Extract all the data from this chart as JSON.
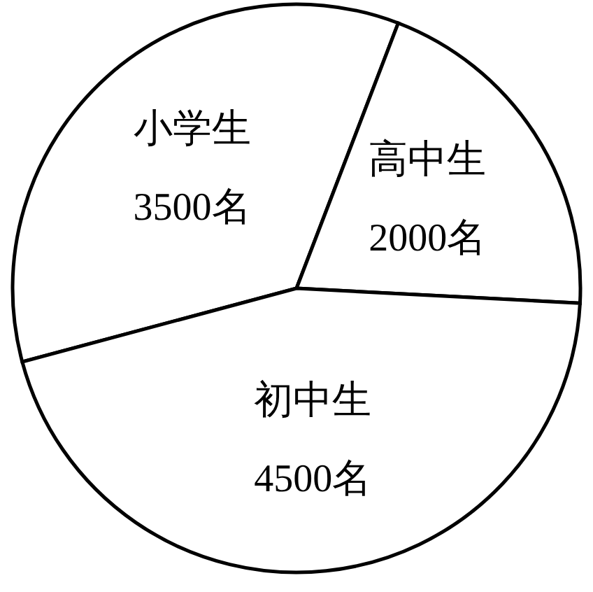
{
  "chart_data": {
    "type": "pie",
    "categories": [
      "小学生",
      "高中生",
      "初中生"
    ],
    "values": [
      3500,
      2000,
      4500
    ],
    "value_labels": [
      "3500名",
      "2000名",
      "4500名"
    ],
    "colors": [
      "#ffffff",
      "#ffffff",
      "#ffffff"
    ]
  }
}
